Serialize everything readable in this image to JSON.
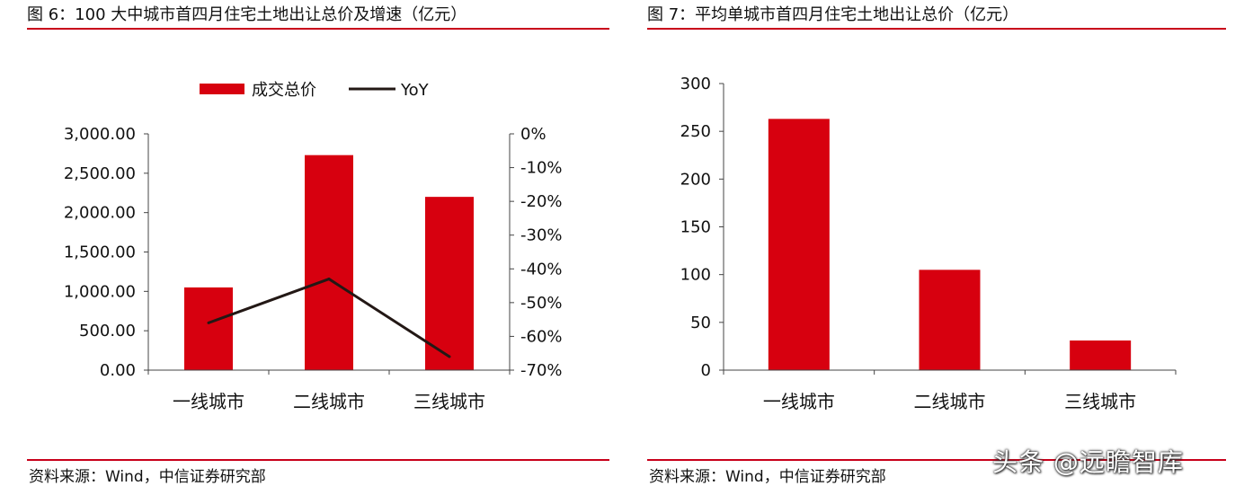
{
  "left": {
    "title": "图 6：100 大中城市首四月住宅土地出让总价及增速（亿元）",
    "source": "资料来源：Wind，中信证券研究部"
  },
  "right": {
    "title": "图 7：平均单城市首四月住宅土地出让总价（亿元）",
    "source": "资料来源：Wind，中信证券研究部"
  },
  "watermark": "头条 @远瞻智库",
  "colors": {
    "accent": "#c8001a",
    "bar": "#d7000f",
    "line": "#231815"
  },
  "chart_data": [
    {
      "type": "bar",
      "categories": [
        "一线城市",
        "二线城市",
        "三线城市"
      ],
      "series": [
        {
          "name": "成交总价",
          "type": "bar",
          "axis": "left",
          "values": [
            1050,
            2730,
            2200
          ]
        },
        {
          "name": "YoY",
          "type": "line",
          "axis": "right",
          "values": [
            -56,
            -43,
            -66
          ]
        }
      ],
      "ylim": [
        0,
        3000
      ],
      "yticks": [
        "0.00",
        "500.00",
        "1,000.00",
        "1,500.00",
        "2,000.00",
        "2,500.00",
        "3,000.00"
      ],
      "y2lim": [
        -70,
        0
      ],
      "y2ticks": [
        "-70%",
        "-60%",
        "-50%",
        "-40%",
        "-30%",
        "-20%",
        "-10%",
        "0%"
      ],
      "legend": "top-center",
      "grid": false
    },
    {
      "type": "bar",
      "categories": [
        "一线城市",
        "二线城市",
        "三线城市"
      ],
      "values": [
        263,
        105,
        31
      ],
      "ylim": [
        0,
        300
      ],
      "yticks": [
        "0",
        "50",
        "100",
        "150",
        "200",
        "250",
        "300"
      ],
      "grid": false
    }
  ]
}
